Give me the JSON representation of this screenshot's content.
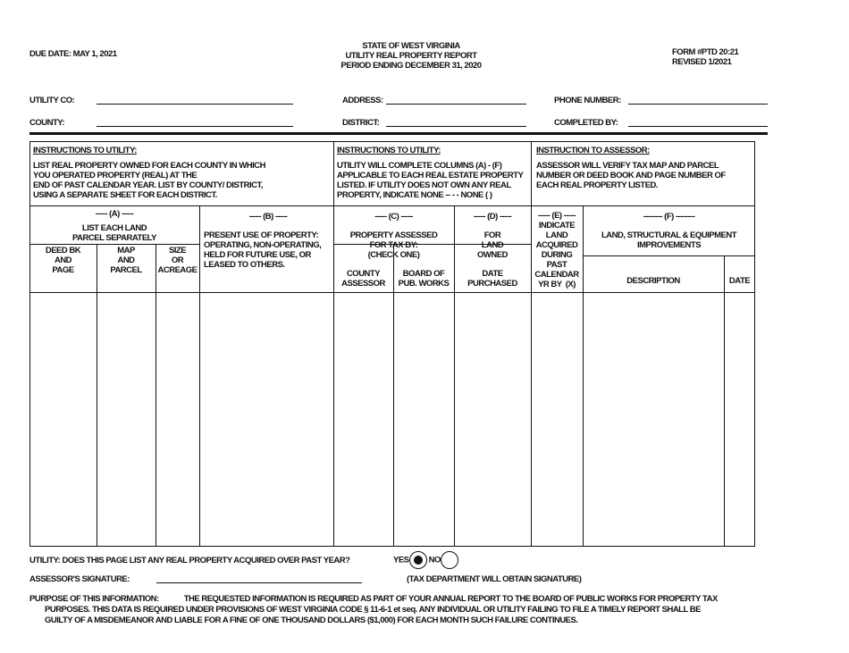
{
  "header": {
    "due_date": "DUE DATE:  MAY 1, 2021",
    "title_lines": [
      "STATE OF WEST VIRGINIA",
      "UTILITY REAL PROPERTY REPORT",
      "PERIOD ENDING DECEMBER 31, 2020"
    ],
    "form_number": "FORM #PTD 20:21",
    "revised": "REVISED 1/2021"
  },
  "fields": {
    "utility_co": {
      "label": "UTILITY CO:",
      "value": ""
    },
    "county": {
      "label": "COUNTY:",
      "value": ""
    },
    "address": {
      "label": "ADDRESS:",
      "value": ""
    },
    "district": {
      "label": "DISTRICT:",
      "value": ""
    },
    "phone": {
      "label": "PHONE NUMBER:",
      "value": ""
    },
    "completed_by": {
      "label": "COMPLETED BY:",
      "value": ""
    }
  },
  "instructions": [
    {
      "title": "INSTRUCTIONS TO UTILITY:",
      "text": "LIST REAL PROPERTY OWNED FOR EACH COUNTY IN WHICH\nYOU OPERATED PROPERTY (REAL) AT THE\nEND OF PAST CALENDAR YEAR.  LIST BY COUNTY/ DISTRICT,\nUSING A SEPARATE SHEET FOR EACH DISTRICT."
    },
    {
      "title": "INSTRUCTIONS TO UTILITY:",
      "text": "UTILITY WILL COMPLETE COLUMNS  (A)  -  (F)\nAPPLICABLE TO EACH REAL ESTATE PROPERTY\nLISTED.   IF UTILITY DOES NOT OWN ANY REAL\nPROPERTY,  INDICATE NONE -- - -  NONE  (     )"
    },
    {
      "title": "INSTRUCTION TO ASSESSOR:",
      "text": "ASSESSOR WILL VERIFY TAX MAP AND PARCEL\nNUMBER OR DEED BOOK AND PAGE NUMBER OF\nEACH REAL PROPERTY LISTED."
    }
  ],
  "groups": {
    "a": {
      "code": "----- (A) -----",
      "text": "LIST EACH LAND\nPARCEL SEPARATELY"
    },
    "b": {
      "code": "----- (B) -----",
      "text": "PRESENT USE OF PROPERTY:\nOPERATING, NON-OPERATING,\nHELD FOR FUTURE USE, OR\nLEASED TO OTHERS."
    },
    "c": {
      "code": "----- (C) -----",
      "text": "PROPERTY ASSESSED\nFOR TAX BY:\n(CHECK ONE)"
    },
    "d": {
      "code": "----- (D) -----",
      "text": "FOR\nLAND\nOWNED"
    },
    "e": {
      "code": "----- (E) -----",
      "text": "INDICATE\nLAND\nACQUIRED\nDURING\nPAST\nCALENDAR\nYR BY  (X)"
    },
    "f": {
      "code": "-------- (F) --------",
      "text": "LAND, STRUCTURAL & EQUIPMENT\nIMPROVEMENTS"
    }
  },
  "columns": [
    "DEED BK\nAND\nPAGE",
    "MAP\nAND\nPARCEL",
    "SIZE\nOR\nACREAGE",
    "COUNTY\nASSESSOR",
    "BOARD OF\nPUB. WORKS",
    "DATE\nPURCHASED",
    "DESCRIPTION",
    "DATE"
  ],
  "footer": {
    "question": "UTILITY:  DOES THIS PAGE LIST ANY REAL PROPERTY ACQUIRED OVER PAST  YEAR?",
    "yes_label": "YES",
    "no_label": "NO",
    "selected": "YES",
    "signature_label": "ASSESSOR'S SIGNATURE:",
    "signature_note": "(TAX DEPARTMENT WILL OBTAIN SIGNATURE)",
    "purpose_label": "PURPOSE OF THIS INFORMATION:",
    "purpose_line1": "THE REQUESTED INFORMATION IS REQUIRED AS PART OF YOUR ANNUAL REPORT TO THE  BOARD OF PUBLIC WORKS FOR PROPERTY TAX",
    "purpose_line2": "PURPOSES.  THIS DATA IS REQUIRED UNDER PROVISIONS OF WEST VIRGINIA CODE    §   11-6-1 et seq.  ANY INDIVIDUAL OR UTILITY FAILING TO FILE A TIMELY REPORT SHALL BE",
    "purpose_line3": "GUILTY OF A MISDEMEANOR AND LIABLE FOR  A FINE OF ONE THOUSAND DOLLARS ($1,000) FOR EACH MONTH SUCH FAILURE CONTINUES."
  }
}
